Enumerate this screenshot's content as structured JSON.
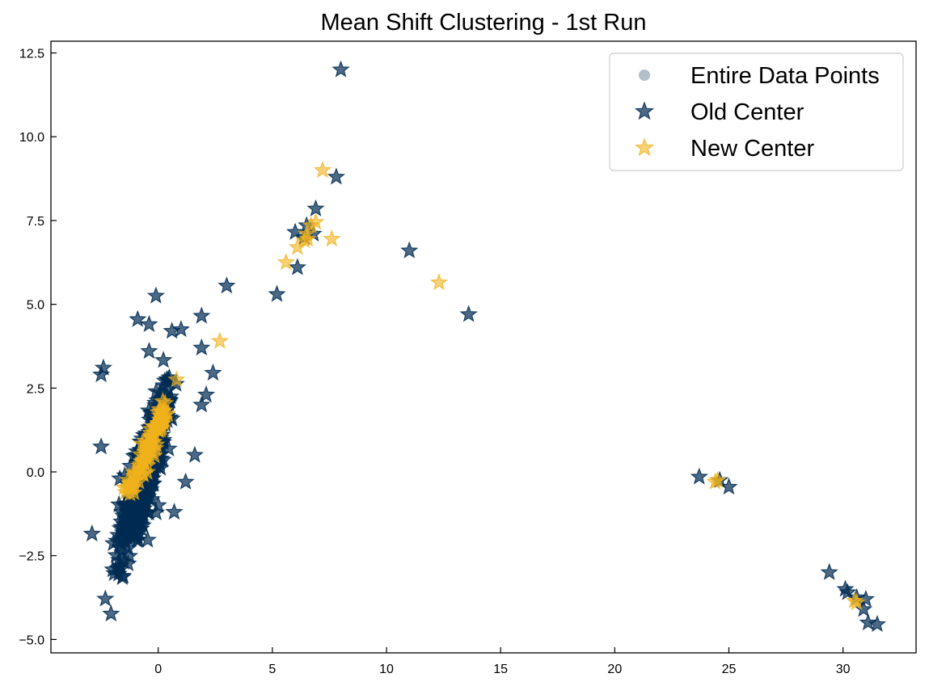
{
  "chart_data": {
    "type": "scatter",
    "title": "Mean Shift Clustering - 1st Run",
    "xlabel": "",
    "ylabel": "",
    "xlim": [
      -4.7,
      33.2
    ],
    "ylim": [
      -5.4,
      12.85
    ],
    "xticks": [
      0,
      5,
      10,
      15,
      20,
      25,
      30
    ],
    "xtick_labels": [
      "0",
      "5",
      "10",
      "15",
      "20",
      "25",
      "30"
    ],
    "yticks": [
      -5.0,
      -2.5,
      0.0,
      2.5,
      5.0,
      7.5,
      10.0,
      12.5
    ],
    "ytick_labels": [
      "−5.0",
      "−2.5",
      "0.0",
      "2.5",
      "5.0",
      "7.5",
      "10.0",
      "12.5"
    ],
    "grid": false,
    "legend_position": "top-right",
    "series": [
      {
        "name": "Entire Data Points",
        "marker": "circle",
        "color": "#002b52",
        "alpha": 0.3,
        "points": [
          [
            -1.2,
            -0.8
          ],
          [
            -0.5,
            0.5
          ],
          [
            -1.5,
            -1.5
          ],
          [
            0.2,
            1.0
          ],
          [
            -0.8,
            0.0
          ],
          [
            24.5,
            -0.3
          ],
          [
            30.7,
            -3.9
          ],
          [
            6.3,
            7.0
          ]
        ]
      },
      {
        "name": "Old Center",
        "marker": "star",
        "color": "#002b52",
        "alpha": 0.7,
        "points": [
          [
            8.0,
            12.0
          ],
          [
            7.8,
            8.8
          ],
          [
            6.9,
            7.85
          ],
          [
            6.5,
            7.35
          ],
          [
            6.0,
            7.15
          ],
          [
            6.4,
            7.0
          ],
          [
            6.8,
            7.1
          ],
          [
            6.1,
            6.1
          ],
          [
            5.2,
            5.3
          ],
          [
            11.0,
            6.6
          ],
          [
            13.6,
            4.7
          ],
          [
            3.0,
            5.55
          ],
          [
            -0.1,
            5.25
          ],
          [
            1.9,
            4.65
          ],
          [
            1.9,
            3.7
          ],
          [
            2.4,
            2.95
          ],
          [
            -2.4,
            3.1
          ],
          [
            -2.5,
            2.9
          ],
          [
            -0.9,
            4.55
          ],
          [
            -0.4,
            4.4
          ],
          [
            0.6,
            4.2
          ],
          [
            1.0,
            4.25
          ],
          [
            -0.4,
            3.6
          ],
          [
            2.1,
            2.3
          ],
          [
            1.9,
            2.0
          ],
          [
            -2.5,
            0.75
          ],
          [
            1.6,
            0.5
          ],
          [
            1.2,
            -0.3
          ],
          [
            -2.9,
            -1.85
          ],
          [
            0.7,
            -1.2
          ],
          [
            0.0,
            -1.0
          ],
          [
            23.7,
            -0.15
          ],
          [
            24.6,
            -0.25
          ],
          [
            25.0,
            -0.45
          ],
          [
            29.4,
            -3.0
          ],
          [
            30.1,
            -3.5
          ],
          [
            30.2,
            -3.6
          ],
          [
            31.0,
            -3.8
          ],
          [
            30.9,
            -4.1
          ],
          [
            31.1,
            -4.5
          ],
          [
            31.5,
            -4.55
          ],
          [
            30.6,
            -3.75
          ]
        ],
        "cloud": {
          "center": [
            -0.6,
            -0.1
          ],
          "spread": [
            0.75,
            1.1
          ],
          "count": 520,
          "slope": 1.05
        }
      },
      {
        "name": "New Center",
        "marker": "star",
        "color": "#f0b21c",
        "alpha": 0.6,
        "points": [
          [
            7.2,
            9.0
          ],
          [
            6.9,
            7.45
          ],
          [
            6.7,
            7.35
          ],
          [
            6.5,
            7.1
          ],
          [
            6.1,
            6.7
          ],
          [
            6.4,
            6.9
          ],
          [
            6.55,
            6.95
          ],
          [
            7.6,
            6.95
          ],
          [
            5.6,
            6.25
          ],
          [
            12.3,
            5.65
          ],
          [
            2.7,
            3.9
          ],
          [
            0.8,
            2.75
          ],
          [
            0.3,
            2.05
          ],
          [
            0.2,
            2.1
          ],
          [
            24.4,
            -0.3
          ],
          [
            24.5,
            -0.25
          ],
          [
            30.5,
            -3.85
          ],
          [
            30.6,
            -3.9
          ]
        ],
        "cloud": {
          "line_from": [
            -1.3,
            -0.65
          ],
          "line_to": [
            0.2,
            1.8
          ],
          "count": 90
        }
      }
    ]
  }
}
